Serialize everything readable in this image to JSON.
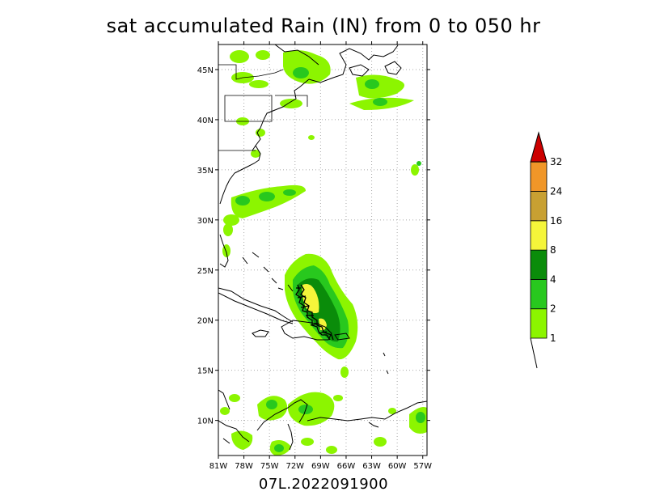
{
  "title": "sat accumulated Rain (IN) from 0 to 050 hr",
  "storm_id": "07L.2022091900",
  "lon_labels": [
    "81W",
    "78W",
    "75W",
    "72W",
    "69W",
    "66W",
    "63W",
    "60W",
    "57W"
  ],
  "lat_labels": [
    "10N",
    "15N",
    "20N",
    "25N",
    "30N",
    "35N",
    "40N",
    "45N"
  ],
  "colorbar": {
    "labels": [
      "1",
      "2",
      "4",
      "8",
      "16",
      "24",
      "32"
    ],
    "colors": [
      "#8cf500",
      "#28c81e",
      "#0a8c0a",
      "#f5f53a",
      "#c8a032",
      "#f09628",
      "#cc0000"
    ]
  },
  "map": {
    "extent": {
      "lon_min": -81,
      "lon_max": -56.5,
      "lat_min": 6.5,
      "lat_max": 47.5
    },
    "rain_colors": {
      "light": "#8cf500",
      "moderate": "#28c81e",
      "heavy": "#0a8c0a",
      "very_heavy": "#f5f53a"
    },
    "track_color": "#000000",
    "grid_color": "#aaaaaa"
  }
}
